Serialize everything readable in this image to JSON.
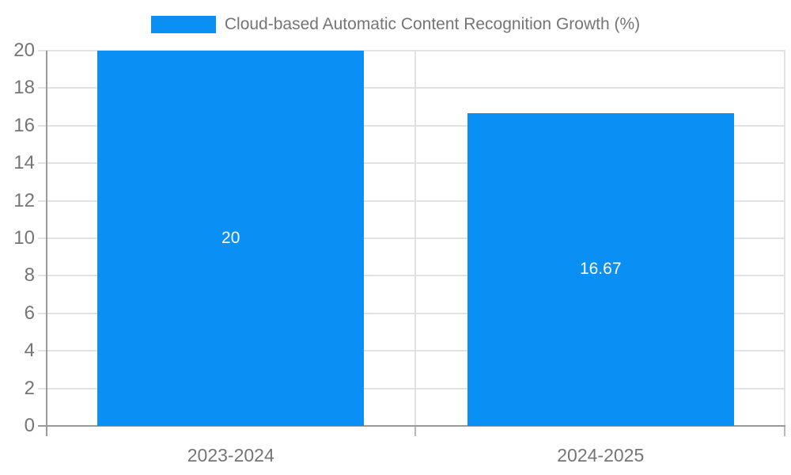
{
  "chart_data": {
    "type": "bar",
    "title": "Cloud-based Automatic Content Recognition Growth (%)",
    "legend": {
      "position": "top",
      "label": "Cloud-based Automatic Content Recognition Growth (%)"
    },
    "categories": [
      "2023-2024",
      "2024-2025"
    ],
    "series": [
      {
        "name": "Cloud-based Automatic Content Recognition Growth (%)",
        "values": [
          20,
          16.67
        ],
        "value_labels": [
          "20",
          "16.67"
        ]
      }
    ],
    "xlabel": "",
    "ylabel": "",
    "ylim": [
      0,
      20
    ],
    "yticks": [
      0,
      2,
      4,
      6,
      8,
      10,
      12,
      14,
      16,
      18,
      20
    ],
    "grid": true,
    "data_labels": "inside-center",
    "colors": {
      "bar": "#0a90f5",
      "bar_label_text": "#ffffff",
      "axis_text": "#757575",
      "title_text": "#757575",
      "gridline": "#e2e2e2",
      "axis_line": "#9a9a9a"
    }
  }
}
